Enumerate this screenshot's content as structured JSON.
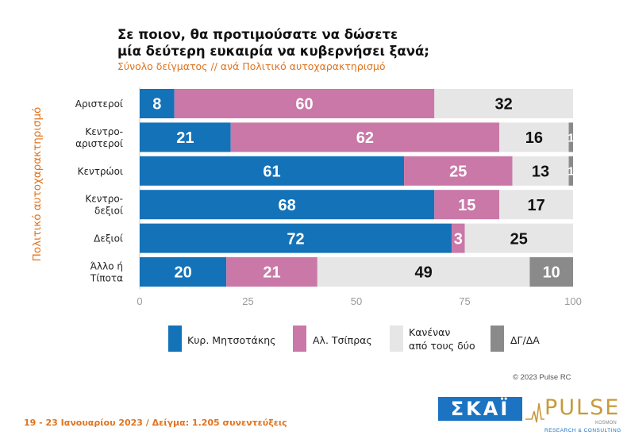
{
  "colors": {
    "mitsotakis": "#1472b8",
    "tsipras": "#c978a8",
    "neither": "#e6e6e6",
    "dk": "#8a8a8a",
    "accent": "#e0731e"
  },
  "header": {
    "title_line1": "Σε ποιον, θα προτιμούσατε να δώσετε",
    "title_line2": "μία δεύτερη ευκαιρία να κυβερνήσει ξανά;",
    "subtitle": "Σύνολο δείγματος // ανά Πολιτικό αυτοχαρακτηρισμό"
  },
  "footer": {
    "copyright": "© 2023 Pulse RC",
    "fieldwork_note": "19 - 23 Ιανουαρίου 2023 / Δείγμα: 1.205 συνεντεύξεις"
  },
  "logos": {
    "skai": "ΣΚΑΪ",
    "pulse": "PULSE",
    "pulse_sub1": "KOSMON",
    "pulse_sub2": "RESEARCH & CONSULTING"
  },
  "legend": {
    "mitsotakis": "Κυρ. Μητσοτάκης",
    "tsipras": "Αλ. Τσίπρας",
    "neither_line1": "Κανέναν",
    "neither_line2": "από τους δύο",
    "dk": "ΔΓ/ΔΑ"
  },
  "chart_data": {
    "type": "bar",
    "orientation": "horizontal",
    "stacked": true,
    "title": "Σε ποιον, θα προτιμούσατε να δώσετε μία δεύτερη ευκαιρία να κυβερνήσει ξανά;",
    "subtitle": "Σύνολο δείγματος // ανά Πολιτικό αυτοχαρακτηρισμό",
    "ylabel": "Πολιτικό αυτοχαρακτηρισμό",
    "xlim": [
      0,
      100
    ],
    "xticks": [
      0,
      25,
      50,
      75,
      100
    ],
    "categories": [
      [
        "Αριστεροί"
      ],
      [
        "Κεντρο-",
        "αριστεροί"
      ],
      [
        "Κεντρώοι"
      ],
      [
        "Κεντρο-",
        "δεξιοί"
      ],
      [
        "Δεξιοί"
      ],
      [
        "Άλλο ή",
        "Τίποτα"
      ]
    ],
    "series": [
      {
        "name": "Κυρ. Μητσοτάκης",
        "color": "#1472b8",
        "values": [
          8,
          21,
          61,
          68,
          72,
          20
        ]
      },
      {
        "name": "Αλ. Τσίπρας",
        "color": "#c978a8",
        "values": [
          60,
          62,
          25,
          15,
          3,
          21
        ]
      },
      {
        "name": "Κανέναν από τους δύο",
        "color": "#e6e6e6",
        "values": [
          32,
          16,
          13,
          17,
          25,
          49
        ]
      },
      {
        "name": "ΔΓ/ΔΑ",
        "color": "#8a8a8a",
        "values": [
          0,
          1,
          1,
          0,
          0,
          10
        ]
      }
    ],
    "labels": [
      [
        "8",
        "60",
        "32",
        ""
      ],
      [
        "21",
        "62",
        "16",
        "1"
      ],
      [
        "61",
        "25",
        "13",
        "1"
      ],
      [
        "68",
        "15",
        "17",
        ""
      ],
      [
        "72",
        "3",
        "25",
        ""
      ],
      [
        "20",
        "21",
        "49",
        "10"
      ]
    ],
    "grid": false,
    "legend_position": "bottom"
  }
}
